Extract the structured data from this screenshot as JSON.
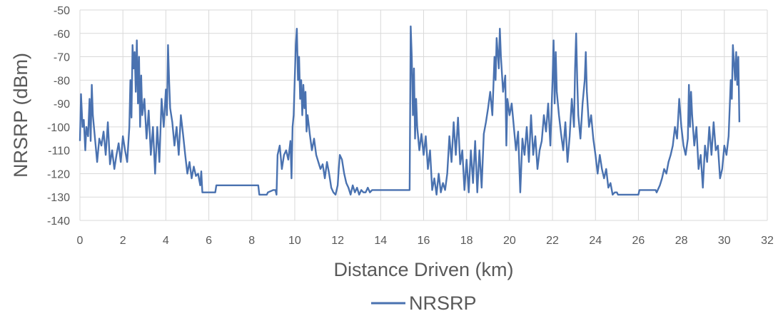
{
  "chart_data": {
    "type": "line",
    "title": "",
    "xlabel": "Distance Driven (km)",
    "ylabel": "NRSRP (dBm)",
    "xlim": [
      0,
      32
    ],
    "ylim": [
      -140,
      -50
    ],
    "x_ticks": [
      "0",
      "2",
      "4",
      "6",
      "8",
      "10",
      "12",
      "14",
      "16",
      "18",
      "20",
      "22",
      "24",
      "26",
      "28",
      "30",
      "32"
    ],
    "y_ticks": [
      "-50",
      "-60",
      "-70",
      "-80",
      "-90",
      "-100",
      "-110",
      "-120",
      "-130",
      "-140"
    ],
    "grid": true,
    "legend_position": "bottom",
    "series_color": "#4a72b0",
    "grid_color": "#d9d9d9",
    "series": [
      {
        "name": "NRSRP",
        "points": [
          [
            0,
            -106
          ],
          [
            0.05,
            -86
          ],
          [
            0.12,
            -100
          ],
          [
            0.18,
            -97
          ],
          [
            0.25,
            -110
          ],
          [
            0.3,
            -100
          ],
          [
            0.38,
            -104
          ],
          [
            0.45,
            -88
          ],
          [
            0.5,
            -106
          ],
          [
            0.55,
            -82
          ],
          [
            0.6,
            -95
          ],
          [
            0.7,
            -105
          ],
          [
            0.8,
            -115
          ],
          [
            0.9,
            -105
          ],
          [
            1.0,
            -108
          ],
          [
            1.1,
            -102
          ],
          [
            1.2,
            -112
          ],
          [
            1.3,
            -98
          ],
          [
            1.4,
            -116
          ],
          [
            1.5,
            -110
          ],
          [
            1.6,
            -118
          ],
          [
            1.7,
            -112
          ],
          [
            1.8,
            -107
          ],
          [
            1.9,
            -115
          ],
          [
            2.0,
            -104
          ],
          [
            2.1,
            -110
          ],
          [
            2.2,
            -115
          ],
          [
            2.3,
            -100
          ],
          [
            2.35,
            -80
          ],
          [
            2.4,
            -96
          ],
          [
            2.45,
            -65
          ],
          [
            2.5,
            -75
          ],
          [
            2.55,
            -68
          ],
          [
            2.6,
            -85
          ],
          [
            2.65,
            -63
          ],
          [
            2.7,
            -90
          ],
          [
            2.75,
            -70
          ],
          [
            2.8,
            -100
          ],
          [
            2.85,
            -78
          ],
          [
            2.9,
            -95
          ],
          [
            3.0,
            -88
          ],
          [
            3.1,
            -105
          ],
          [
            3.2,
            -93
          ],
          [
            3.3,
            -112
          ],
          [
            3.4,
            -100
          ],
          [
            3.5,
            -120
          ],
          [
            3.6,
            -100
          ],
          [
            3.7,
            -115
          ],
          [
            3.8,
            -88
          ],
          [
            3.9,
            -100
          ],
          [
            4.0,
            -84
          ],
          [
            4.05,
            -95
          ],
          [
            4.1,
            -65
          ],
          [
            4.15,
            -80
          ],
          [
            4.2,
            -92
          ],
          [
            4.3,
            -98
          ],
          [
            4.4,
            -108
          ],
          [
            4.5,
            -100
          ],
          [
            4.6,
            -112
          ],
          [
            4.7,
            -95
          ],
          [
            4.8,
            -103
          ],
          [
            4.9,
            -112
          ],
          [
            5.0,
            -120
          ],
          [
            5.1,
            -115
          ],
          [
            5.2,
            -122
          ],
          [
            5.3,
            -117
          ],
          [
            5.4,
            -121
          ],
          [
            5.5,
            -120
          ],
          [
            5.6,
            -125
          ],
          [
            5.65,
            -119
          ],
          [
            5.7,
            -128
          ],
          [
            6.0,
            -128
          ],
          [
            6.3,
            -128
          ],
          [
            6.35,
            -125
          ],
          [
            8.3,
            -125
          ],
          [
            8.35,
            -129
          ],
          [
            8.7,
            -129
          ],
          [
            8.75,
            -128
          ],
          [
            9.0,
            -127
          ],
          [
            9.1,
            -127
          ],
          [
            9.15,
            -129
          ],
          [
            9.2,
            -112
          ],
          [
            9.3,
            -108
          ],
          [
            9.4,
            -118
          ],
          [
            9.5,
            -112
          ],
          [
            9.6,
            -110
          ],
          [
            9.7,
            -114
          ],
          [
            9.8,
            -106
          ],
          [
            9.85,
            -122
          ],
          [
            9.9,
            -100
          ],
          [
            9.95,
            -95
          ],
          [
            10.0,
            -80
          ],
          [
            10.05,
            -65
          ],
          [
            10.1,
            -58
          ],
          [
            10.15,
            -80
          ],
          [
            10.2,
            -70
          ],
          [
            10.25,
            -88
          ],
          [
            10.3,
            -80
          ],
          [
            10.35,
            -95
          ],
          [
            10.4,
            -82
          ],
          [
            10.45,
            -92
          ],
          [
            10.5,
            -85
          ],
          [
            10.55,
            -102
          ],
          [
            10.6,
            -95
          ],
          [
            10.7,
            -103
          ],
          [
            10.8,
            -110
          ],
          [
            10.9,
            -105
          ],
          [
            11.0,
            -112
          ],
          [
            11.1,
            -115
          ],
          [
            11.2,
            -118
          ],
          [
            11.3,
            -116
          ],
          [
            11.4,
            -122
          ],
          [
            11.5,
            -115
          ],
          [
            11.6,
            -120
          ],
          [
            11.7,
            -126
          ],
          [
            11.8,
            -128
          ],
          [
            11.9,
            -129
          ],
          [
            12.0,
            -125
          ],
          [
            12.05,
            -118
          ],
          [
            12.1,
            -112
          ],
          [
            12.2,
            -114
          ],
          [
            12.3,
            -120
          ],
          [
            12.4,
            -124
          ],
          [
            12.5,
            -126
          ],
          [
            12.6,
            -129
          ],
          [
            12.7,
            -125
          ],
          [
            12.8,
            -128
          ],
          [
            12.9,
            -126
          ],
          [
            13.0,
            -129
          ],
          [
            13.1,
            -127
          ],
          [
            13.2,
            -128
          ],
          [
            13.3,
            -128
          ],
          [
            13.4,
            -126
          ],
          [
            13.5,
            -128
          ],
          [
            13.6,
            -127
          ],
          [
            15.3,
            -127
          ],
          [
            15.35,
            -127
          ],
          [
            15.4,
            -57
          ],
          [
            15.45,
            -70
          ],
          [
            15.5,
            -95
          ],
          [
            15.55,
            -75
          ],
          [
            15.6,
            -105
          ],
          [
            15.65,
            -88
          ],
          [
            15.7,
            -100
          ],
          [
            15.8,
            -110
          ],
          [
            15.9,
            -103
          ],
          [
            16.0,
            -112
          ],
          [
            16.1,
            -104
          ],
          [
            16.2,
            -118
          ],
          [
            16.3,
            -110
          ],
          [
            16.4,
            -127
          ],
          [
            16.5,
            -122
          ],
          [
            16.6,
            -129
          ],
          [
            16.7,
            -120
          ],
          [
            16.8,
            -128
          ],
          [
            16.9,
            -124
          ],
          [
            17.0,
            -127
          ],
          [
            17.1,
            -120
          ],
          [
            17.2,
            -104
          ],
          [
            17.3,
            -115
          ],
          [
            17.4,
            -98
          ],
          [
            17.5,
            -112
          ],
          [
            17.6,
            -96
          ],
          [
            17.7,
            -116
          ],
          [
            17.8,
            -110
          ],
          [
            17.9,
            -127
          ],
          [
            18.0,
            -114
          ],
          [
            18.1,
            -128
          ],
          [
            18.2,
            -110
          ],
          [
            18.3,
            -124
          ],
          [
            18.4,
            -106
          ],
          [
            18.5,
            -128
          ],
          [
            18.6,
            -110
          ],
          [
            18.7,
            -126
          ],
          [
            18.8,
            -103
          ],
          [
            18.9,
            -98
          ],
          [
            19.0,
            -92
          ],
          [
            19.1,
            -85
          ],
          [
            19.2,
            -95
          ],
          [
            19.3,
            -70
          ],
          [
            19.35,
            -80
          ],
          [
            19.4,
            -62
          ],
          [
            19.5,
            -75
          ],
          [
            19.55,
            -58
          ],
          [
            19.6,
            -70
          ],
          [
            19.7,
            -85
          ],
          [
            19.8,
            -78
          ],
          [
            19.85,
            -108
          ],
          [
            19.9,
            -88
          ],
          [
            20.0,
            -95
          ],
          [
            20.1,
            -90
          ],
          [
            20.2,
            -100
          ],
          [
            20.3,
            -110
          ],
          [
            20.4,
            -102
          ],
          [
            20.5,
            -128
          ],
          [
            20.6,
            -105
          ],
          [
            20.7,
            -112
          ],
          [
            20.8,
            -100
          ],
          [
            20.9,
            -115
          ],
          [
            21.0,
            -95
          ],
          [
            21.1,
            -112
          ],
          [
            21.2,
            -104
          ],
          [
            21.3,
            -118
          ],
          [
            21.4,
            -110
          ],
          [
            21.5,
            -106
          ],
          [
            21.6,
            -95
          ],
          [
            21.7,
            -102
          ],
          [
            21.8,
            -90
          ],
          [
            21.9,
            -108
          ],
          [
            22.0,
            -80
          ],
          [
            22.05,
            -63
          ],
          [
            22.1,
            -90
          ],
          [
            22.15,
            -68
          ],
          [
            22.2,
            -85
          ],
          [
            22.3,
            -95
          ],
          [
            22.4,
            -103
          ],
          [
            22.5,
            -110
          ],
          [
            22.6,
            -98
          ],
          [
            22.7,
            -115
          ],
          [
            22.8,
            -104
          ],
          [
            22.9,
            -88
          ],
          [
            23.0,
            -100
          ],
          [
            23.05,
            -75
          ],
          [
            23.1,
            -60
          ],
          [
            23.15,
            -80
          ],
          [
            23.2,
            -95
          ],
          [
            23.3,
            -105
          ],
          [
            23.4,
            -90
          ],
          [
            23.5,
            -80
          ],
          [
            23.55,
            -68
          ],
          [
            23.6,
            -85
          ],
          [
            23.7,
            -100
          ],
          [
            23.8,
            -95
          ],
          [
            23.9,
            -105
          ],
          [
            24.0,
            -112
          ],
          [
            24.1,
            -120
          ],
          [
            24.2,
            -112
          ],
          [
            24.3,
            -118
          ],
          [
            24.4,
            -122
          ],
          [
            24.5,
            -118
          ],
          [
            24.6,
            -126
          ],
          [
            24.7,
            -124
          ],
          [
            24.8,
            -129
          ],
          [
            24.9,
            -128
          ],
          [
            25.0,
            -128
          ],
          [
            25.05,
            -129
          ],
          [
            25.5,
            -129
          ],
          [
            25.6,
            -129
          ],
          [
            26.0,
            -129
          ],
          [
            26.05,
            -127
          ],
          [
            26.8,
            -127
          ],
          [
            26.85,
            -128
          ],
          [
            27.0,
            -125
          ],
          [
            27.1,
            -122
          ],
          [
            27.2,
            -118
          ],
          [
            27.3,
            -120
          ],
          [
            27.4,
            -115
          ],
          [
            27.5,
            -112
          ],
          [
            27.6,
            -108
          ],
          [
            27.7,
            -100
          ],
          [
            27.8,
            -105
          ],
          [
            27.9,
            -88
          ],
          [
            28.0,
            -100
          ],
          [
            28.1,
            -108
          ],
          [
            28.2,
            -112
          ],
          [
            28.3,
            -105
          ],
          [
            28.35,
            -82
          ],
          [
            28.4,
            -100
          ],
          [
            28.45,
            -85
          ],
          [
            28.5,
            -95
          ],
          [
            28.6,
            -108
          ],
          [
            28.7,
            -100
          ],
          [
            28.8,
            -118
          ],
          [
            28.9,
            -112
          ],
          [
            29.0,
            -126
          ],
          [
            29.1,
            -108
          ],
          [
            29.2,
            -115
          ],
          [
            29.3,
            -100
          ],
          [
            29.4,
            -112
          ],
          [
            29.5,
            -98
          ],
          [
            29.6,
            -110
          ],
          [
            29.7,
            -108
          ],
          [
            29.8,
            -122
          ],
          [
            29.9,
            -118
          ],
          [
            30.0,
            -108
          ],
          [
            30.1,
            -112
          ],
          [
            30.2,
            -104
          ],
          [
            30.3,
            -80
          ],
          [
            30.35,
            -88
          ],
          [
            30.4,
            -65
          ],
          [
            30.5,
            -80
          ],
          [
            30.55,
            -68
          ],
          [
            30.6,
            -82
          ],
          [
            30.65,
            -70
          ],
          [
            30.7,
            -98
          ]
        ]
      }
    ]
  }
}
